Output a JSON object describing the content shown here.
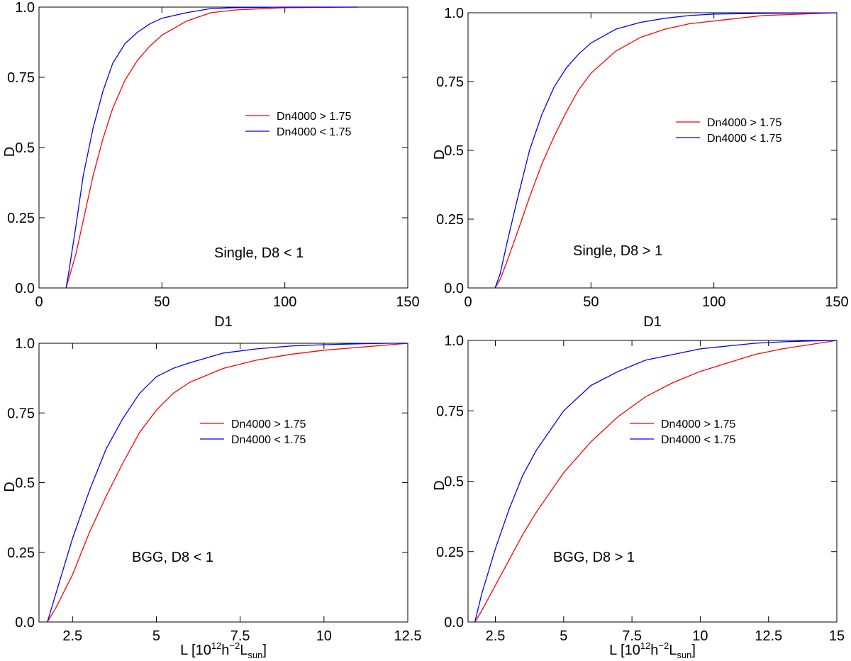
{
  "chart_data": [
    {
      "type": "line",
      "panel": "top-left",
      "annotation": "Single, D8 < 1",
      "xlabel": "D1",
      "ylabel": "D",
      "xlim": [
        0,
        150
      ],
      "ylim": [
        0,
        1
      ],
      "xticks": [
        0,
        50,
        100,
        150
      ],
      "xtick_labels": [
        "0",
        "50",
        "100",
        "150"
      ],
      "yticks": [
        0,
        0.25,
        0.5,
        0.75,
        1
      ],
      "ytick_labels": [
        "0.0",
        "0.25",
        "0.5",
        "0.75",
        "1.0"
      ],
      "legend": [
        "Dn4000 > 1.75",
        "Dn4000 < 1.75"
      ],
      "series": [
        {
          "name": "Dn4000 > 1.75",
          "color": "#ff0000",
          "x": [
            11,
            12,
            15,
            18,
            22,
            26,
            30,
            35,
            40,
            45,
            50,
            60,
            70,
            80,
            100,
            130
          ],
          "y": [
            0,
            0.03,
            0.12,
            0.24,
            0.4,
            0.53,
            0.64,
            0.74,
            0.81,
            0.86,
            0.9,
            0.95,
            0.98,
            0.99,
            0.998,
            1.0
          ]
        },
        {
          "name": "Dn4000 < 1.75",
          "color": "#0000ff",
          "x": [
            11,
            12,
            15,
            18,
            22,
            26,
            30,
            35,
            40,
            45,
            50,
            60,
            70,
            80,
            100,
            130
          ],
          "y": [
            0,
            0.05,
            0.22,
            0.4,
            0.57,
            0.7,
            0.8,
            0.87,
            0.91,
            0.94,
            0.96,
            0.98,
            0.995,
            0.998,
            1.0,
            1.0
          ]
        }
      ]
    },
    {
      "type": "line",
      "panel": "top-right",
      "annotation": "Single, D8 > 1",
      "xlabel": "D1",
      "ylabel": "D",
      "xlim": [
        0,
        150
      ],
      "ylim": [
        0,
        1
      ],
      "xticks": [
        0,
        50,
        100,
        150
      ],
      "xtick_labels": [
        "0",
        "50",
        "100",
        "150"
      ],
      "yticks": [
        0,
        0.25,
        0.5,
        0.75,
        1
      ],
      "ytick_labels": [
        "0.0",
        "0.25",
        "0.5",
        "0.75",
        "1.0"
      ],
      "legend": [
        "Dn4000 > 1.75",
        "Dn4000 < 1.75"
      ],
      "series": [
        {
          "name": "Dn4000 > 1.75",
          "color": "#ff0000",
          "x": [
            11,
            13,
            16,
            20,
            25,
            30,
            35,
            40,
            45,
            50,
            60,
            70,
            80,
            90,
            100,
            120,
            150
          ],
          "y": [
            0,
            0.03,
            0.1,
            0.2,
            0.33,
            0.45,
            0.55,
            0.64,
            0.72,
            0.78,
            0.86,
            0.91,
            0.94,
            0.96,
            0.97,
            0.99,
            1.0
          ]
        },
        {
          "name": "Dn4000 < 1.75",
          "color": "#0000ff",
          "x": [
            11,
            13,
            16,
            20,
            25,
            30,
            35,
            40,
            45,
            50,
            60,
            70,
            80,
            90,
            100,
            120,
            150
          ],
          "y": [
            0,
            0.05,
            0.17,
            0.32,
            0.5,
            0.63,
            0.73,
            0.8,
            0.85,
            0.89,
            0.94,
            0.965,
            0.98,
            0.99,
            0.995,
            0.998,
            1.0
          ]
        }
      ]
    },
    {
      "type": "line",
      "panel": "bottom-left",
      "annotation": "BGG, D8 < 1",
      "xlabel": "L [10^12 h^-2 L_sun]",
      "ylabel": "D",
      "xlim": [
        1.5,
        12.5
      ],
      "ylim": [
        0,
        1
      ],
      "xticks": [
        2.5,
        5,
        7.5,
        10,
        12.5
      ],
      "xtick_labels": [
        "2.5",
        "5",
        "7.5",
        "10",
        "12.5"
      ],
      "yticks": [
        0,
        0.25,
        0.5,
        0.75,
        1
      ],
      "ytick_labels": [
        "0.0",
        "0.25",
        "0.5",
        "0.75",
        "1.0"
      ],
      "legend": [
        "Dn4000 > 1.75",
        "Dn4000 < 1.75"
      ],
      "series": [
        {
          "name": "Dn4000 > 1.75",
          "color": "#ff0000",
          "x": [
            1.75,
            2.0,
            2.5,
            3.0,
            3.5,
            4.0,
            4.5,
            5.0,
            5.5,
            6.0,
            7.0,
            8.0,
            9.0,
            10.0,
            11.0,
            12.0,
            12.5
          ],
          "y": [
            0,
            0.05,
            0.17,
            0.32,
            0.45,
            0.57,
            0.68,
            0.76,
            0.82,
            0.86,
            0.91,
            0.94,
            0.96,
            0.975,
            0.985,
            0.995,
            1.0
          ]
        },
        {
          "name": "Dn4000 < 1.75",
          "color": "#0000ff",
          "x": [
            1.75,
            2.0,
            2.5,
            3.0,
            3.5,
            4.0,
            4.5,
            5.0,
            5.5,
            6.0,
            7.0,
            8.0,
            9.0,
            10.0,
            11.0,
            12.0,
            12.5
          ],
          "y": [
            0,
            0.1,
            0.3,
            0.47,
            0.62,
            0.73,
            0.82,
            0.88,
            0.91,
            0.93,
            0.965,
            0.98,
            0.99,
            0.995,
            0.998,
            1.0,
            1.0
          ]
        }
      ]
    },
    {
      "type": "line",
      "panel": "bottom-right",
      "annotation": "BGG, D8 > 1",
      "xlabel": "L [10^12 h^-2 L_sun]",
      "ylabel": "D",
      "xlim": [
        1.5,
        15
      ],
      "ylim": [
        0,
        1
      ],
      "xticks": [
        2.5,
        5,
        7.5,
        10,
        12.5,
        15
      ],
      "xtick_labels": [
        "2.5",
        "5",
        "7.5",
        "10",
        "12.5",
        "15"
      ],
      "yticks": [
        0,
        0.25,
        0.5,
        0.75,
        1
      ],
      "ytick_labels": [
        "0.0",
        "0.25",
        "0.5",
        "0.75",
        "1.0"
      ],
      "legend": [
        "Dn4000 > 1.75",
        "Dn4000 < 1.75"
      ],
      "series": [
        {
          "name": "Dn4000 > 1.75",
          "color": "#ff0000",
          "x": [
            1.75,
            2.0,
            2.5,
            3.0,
            3.5,
            4.0,
            5.0,
            6.0,
            7.0,
            8.0,
            9.0,
            10.0,
            11.0,
            12.0,
            13.0,
            14.0,
            15.0
          ],
          "y": [
            0,
            0.04,
            0.13,
            0.22,
            0.31,
            0.39,
            0.53,
            0.64,
            0.73,
            0.8,
            0.85,
            0.89,
            0.92,
            0.95,
            0.97,
            0.985,
            1.0
          ]
        },
        {
          "name": "Dn4000 < 1.75",
          "color": "#0000ff",
          "x": [
            1.75,
            2.0,
            2.5,
            3.0,
            3.5,
            4.0,
            5.0,
            6.0,
            7.0,
            8.0,
            9.0,
            10.0,
            11.0,
            12.0,
            13.0,
            14.0,
            15.0
          ],
          "y": [
            0,
            0.1,
            0.26,
            0.4,
            0.52,
            0.61,
            0.75,
            0.84,
            0.89,
            0.93,
            0.95,
            0.97,
            0.98,
            0.99,
            0.995,
            0.998,
            1.0
          ]
        }
      ]
    }
  ]
}
